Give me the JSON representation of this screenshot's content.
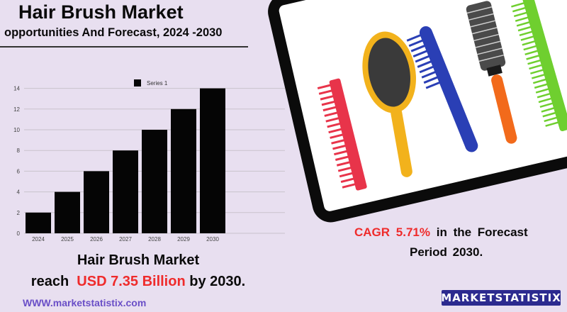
{
  "header": {
    "title": "Hair Brush Market",
    "subtitle": "opportunities And Forecast, 2024 -2030"
  },
  "chart_data": {
    "type": "bar",
    "categories": [
      "2024",
      "2025",
      "2026",
      "2027",
      "2028",
      "2029",
      "2030"
    ],
    "series": [
      {
        "name": "Series 1",
        "values": [
          2,
          4,
          6,
          8,
          10,
          12,
          14
        ]
      }
    ],
    "yticks": [
      0,
      2,
      4,
      6,
      8,
      10,
      12,
      14
    ],
    "ylim": [
      0,
      15
    ],
    "grid": true,
    "legend": "top-center",
    "colors": {
      "bar": "#050505",
      "grid": "#c9c2cc"
    }
  },
  "summary": {
    "line1": "Hair Brush Market",
    "line2_pre": "reach",
    "line2_value": "USD 7.35 Billion",
    "line2_post": "by 2030."
  },
  "website": "WWW.marketstatistix.com",
  "cagr": {
    "label": "CAGR",
    "value": "5.71%",
    "text1": "in the  Forecast",
    "text2": "Period  2030."
  },
  "logo": {
    "part1": "MARKET",
    "part2": "STATISTIX"
  },
  "colors": {
    "accent_red": "#ef2b2b",
    "link_purple": "#6a4fc7",
    "logo_bg": "#2c2a8f",
    "background": "#e8dff0"
  }
}
